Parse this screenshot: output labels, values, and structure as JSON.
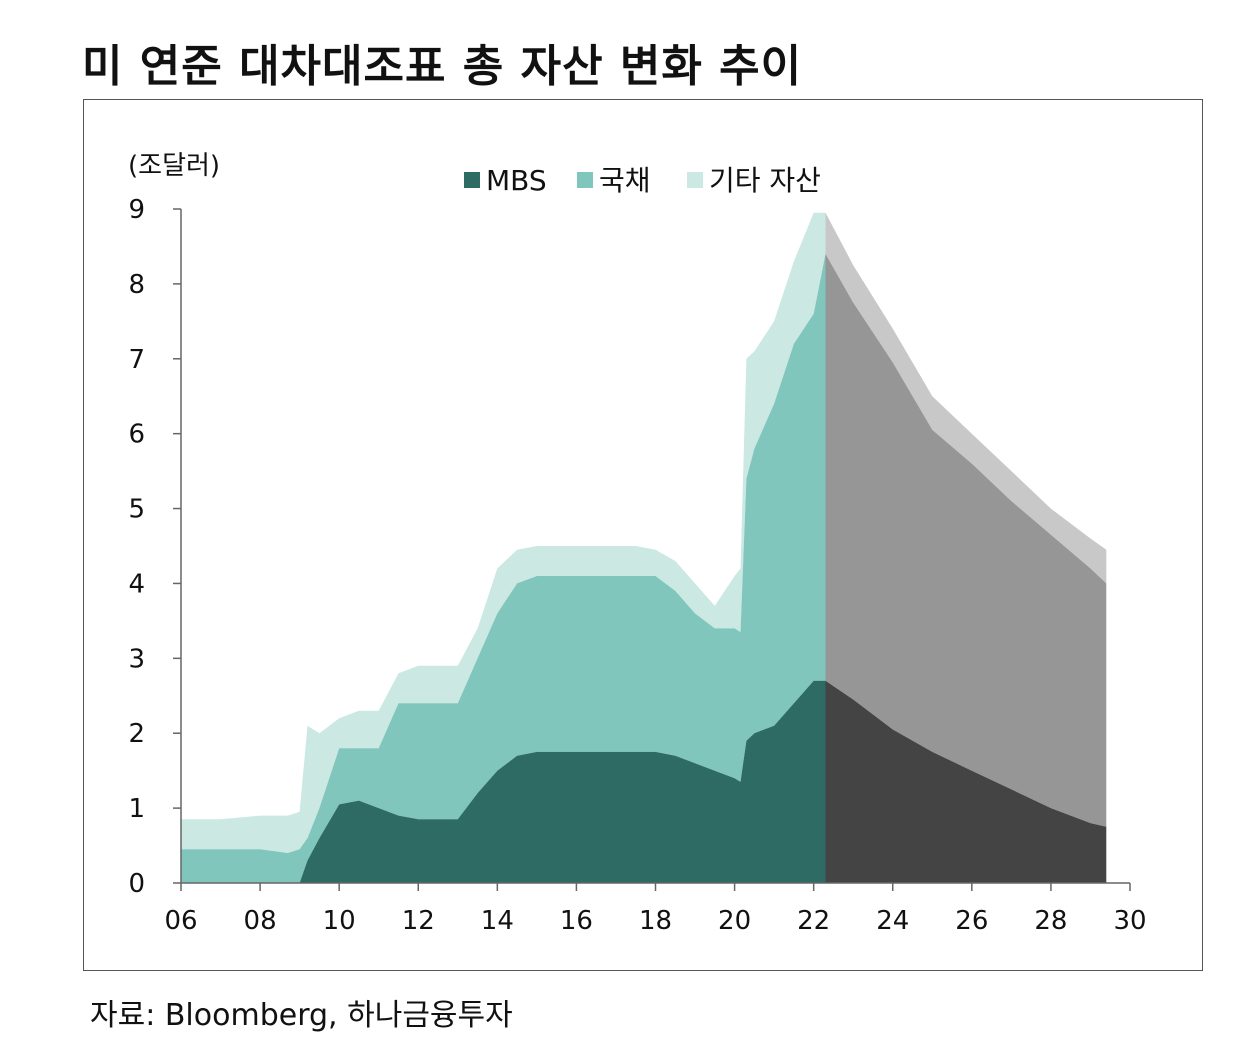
{
  "title": "미 연준 대차대조표 총 자산 변화 추이",
  "source": "자료: Bloomberg, 하나금융투자",
  "chart_data": {
    "type": "area",
    "stacked": true,
    "unit_label": "(조달러)",
    "x_tick_labels": [
      "06",
      "08",
      "10",
      "12",
      "14",
      "16",
      "18",
      "20",
      "22",
      "24",
      "26",
      "28",
      "30"
    ],
    "x_ticks": [
      2006,
      2008,
      2010,
      2012,
      2014,
      2016,
      2018,
      2020,
      2022,
      2024,
      2026,
      2028,
      2030
    ],
    "y_ticks": [
      0,
      1,
      2,
      3,
      4,
      5,
      6,
      7,
      8,
      9
    ],
    "xlim": [
      2006,
      2030
    ],
    "ylim": [
      0,
      9
    ],
    "legend_position": "top-center",
    "legend": [
      {
        "label": "MBS",
        "color": "#2e6b65"
      },
      {
        "label": "국채",
        "color": "#80c6bd"
      },
      {
        "label": "기타 자산",
        "color": "#cbe8e3"
      }
    ],
    "actual_colors": [
      "#2e6b65",
      "#80c6bd",
      "#cbe8e3"
    ],
    "projection_colors": [
      "#444444",
      "#969696",
      "#c8c8c8"
    ],
    "projection_start": 2022.3,
    "x": [
      2006.0,
      2007.0,
      2008.0,
      2008.7,
      2009.0,
      2009.2,
      2009.5,
      2010.0,
      2010.5,
      2011.0,
      2011.5,
      2012.0,
      2012.5,
      2013.0,
      2013.5,
      2014.0,
      2014.5,
      2015.0,
      2015.5,
      2016.0,
      2016.5,
      2017.0,
      2017.5,
      2018.0,
      2018.5,
      2019.0,
      2019.5,
      2020.0,
      2020.15,
      2020.3,
      2020.5,
      2021.0,
      2021.5,
      2022.0,
      2022.3,
      2023.0,
      2024.0,
      2025.0,
      2026.0,
      2027.0,
      2028.0,
      2029.0,
      2029.4
    ],
    "series": [
      {
        "name": "MBS",
        "values": [
          0,
          0,
          0,
          0,
          0,
          0.3,
          0.6,
          1.05,
          1.1,
          1.0,
          0.9,
          0.85,
          0.85,
          0.85,
          1.2,
          1.5,
          1.7,
          1.75,
          1.75,
          1.75,
          1.75,
          1.75,
          1.75,
          1.75,
          1.7,
          1.6,
          1.5,
          1.4,
          1.35,
          1.9,
          2.0,
          2.1,
          2.4,
          2.7,
          2.7,
          2.45,
          2.05,
          1.75,
          1.5,
          1.25,
          1.0,
          0.8,
          0.75
        ]
      },
      {
        "name": "국채",
        "values": [
          0.45,
          0.45,
          0.45,
          0.4,
          0.45,
          0.6,
          1.0,
          1.8,
          1.8,
          1.8,
          2.4,
          2.4,
          2.4,
          2.4,
          3.0,
          3.6,
          4.0,
          4.1,
          4.1,
          4.1,
          4.1,
          4.1,
          4.1,
          4.1,
          3.9,
          3.6,
          3.4,
          3.4,
          3.35,
          5.4,
          5.8,
          6.4,
          7.2,
          7.6,
          8.4,
          7.75,
          6.95,
          6.05,
          5.6,
          5.1,
          4.65,
          4.2,
          4.0
        ]
      },
      {
        "name": "기타 자산",
        "values": [
          0.85,
          0.85,
          0.9,
          0.9,
          0.95,
          2.1,
          2.0,
          2.2,
          2.3,
          2.3,
          2.8,
          2.9,
          2.9,
          2.9,
          3.4,
          4.2,
          4.45,
          4.5,
          4.5,
          4.5,
          4.5,
          4.5,
          4.5,
          4.45,
          4.3,
          4.0,
          3.7,
          4.1,
          4.2,
          7.0,
          7.1,
          7.5,
          8.3,
          8.95,
          8.95,
          8.25,
          7.4,
          6.5,
          6.0,
          5.5,
          5.0,
          4.6,
          4.45
        ]
      }
    ]
  }
}
